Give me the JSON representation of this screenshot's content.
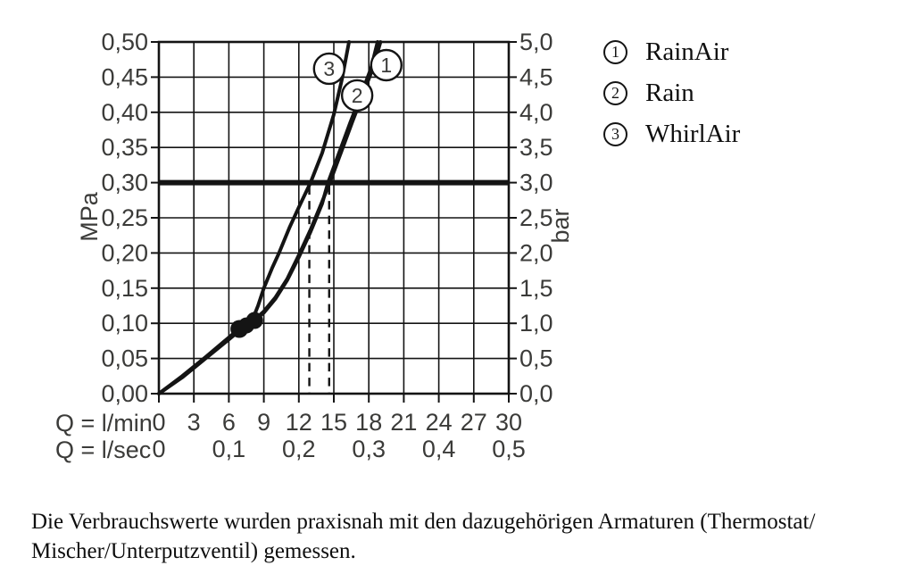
{
  "chart_data": {
    "type": "line",
    "title": "",
    "x_axis": {
      "primary_label": "Q = l/min",
      "secondary_label": "Q = l/sec",
      "primary_ticks": [
        "0",
        "3",
        "6",
        "9",
        "12",
        "15",
        "18",
        "21",
        "24",
        "27",
        "30"
      ],
      "secondary_ticks": [
        {
          "value": "0",
          "at": 0
        },
        {
          "value": "0,1",
          "at": 6
        },
        {
          "value": "0,2",
          "at": 12
        },
        {
          "value": "0,3",
          "at": 18
        },
        {
          "value": "0,4",
          "at": 24
        },
        {
          "value": "0,5",
          "at": 30
        }
      ],
      "range": [
        0,
        30
      ]
    },
    "y_axis_left": {
      "label": "MPa",
      "ticks": [
        "0,00",
        "0,05",
        "0,10",
        "0,15",
        "0,20",
        "0,25",
        "0,30",
        "0,35",
        "0,40",
        "0,45",
        "0,50"
      ],
      "range": [
        0,
        0.5
      ]
    },
    "y_axis_right": {
      "label": "bar",
      "ticks": [
        "0,0",
        "0,5",
        "1,0",
        "1,5",
        "2,0",
        "2,5",
        "3,0",
        "3,5",
        "4,0",
        "4,5",
        "5,0"
      ],
      "range": [
        0,
        5
      ]
    },
    "grid": true,
    "reference_line_mpa": 0.3,
    "dashed_guides_lmin": [
      12.9,
      14.6
    ],
    "operating_dots": [
      {
        "q": 6.9,
        "mpa": 0.092,
        "r": 10
      },
      {
        "q": 7.5,
        "mpa": 0.097,
        "r": 9
      },
      {
        "q": 8.2,
        "mpa": 0.104,
        "r": 9.5
      }
    ],
    "series": [
      {
        "number": "3",
        "name": "WhirlAir",
        "points": [
          [
            0,
            0
          ],
          [
            2,
            0.025
          ],
          [
            4,
            0.052
          ],
          [
            6,
            0.08
          ],
          [
            7,
            0.094
          ],
          [
            8,
            0.104
          ],
          [
            8.5,
            0.125
          ],
          [
            9,
            0.15
          ],
          [
            9.7,
            0.178
          ],
          [
            10.3,
            0.2
          ],
          [
            11.2,
            0.236
          ],
          [
            12,
            0.265
          ],
          [
            13,
            0.3
          ],
          [
            14,
            0.342
          ],
          [
            15,
            0.397
          ],
          [
            15.7,
            0.447
          ],
          [
            16.3,
            0.5
          ]
        ],
        "label_at": {
          "q": 14.6,
          "mpa": 0.462
        }
      },
      {
        "number": "2",
        "name": "Rain",
        "points": [
          [
            0,
            0
          ],
          [
            2,
            0.023
          ],
          [
            4,
            0.05
          ],
          [
            6,
            0.077
          ],
          [
            7,
            0.091
          ],
          [
            8,
            0.101
          ],
          [
            9,
            0.115
          ],
          [
            10,
            0.135
          ],
          [
            11,
            0.161
          ],
          [
            12,
            0.194
          ],
          [
            13,
            0.23
          ],
          [
            14,
            0.27
          ],
          [
            14.5,
            0.3
          ],
          [
            15.4,
            0.34
          ],
          [
            16.4,
            0.385
          ],
          [
            17.4,
            0.428
          ],
          [
            18.2,
            0.463
          ],
          [
            18.75,
            0.5
          ]
        ],
        "label_at": {
          "q": 17.0,
          "mpa": 0.424
        }
      },
      {
        "number": "1",
        "name": "RainAir",
        "points": [
          [
            0,
            0
          ],
          [
            2,
            0.024
          ],
          [
            4,
            0.051
          ],
          [
            6,
            0.078
          ],
          [
            7,
            0.092
          ],
          [
            8,
            0.102
          ],
          [
            9,
            0.117
          ],
          [
            10,
            0.137
          ],
          [
            11,
            0.163
          ],
          [
            12,
            0.197
          ],
          [
            13,
            0.233
          ],
          [
            14,
            0.273
          ],
          [
            14.7,
            0.302
          ],
          [
            15.6,
            0.342
          ],
          [
            16.6,
            0.387
          ],
          [
            17.6,
            0.43
          ],
          [
            18.4,
            0.465
          ],
          [
            19.0,
            0.5
          ]
        ],
        "label_at": {
          "q": 19.5,
          "mpa": 0.467
        }
      }
    ]
  },
  "legend": {
    "items": [
      {
        "number": "1",
        "label": "RainAir"
      },
      {
        "number": "2",
        "label": "Rain"
      },
      {
        "number": "3",
        "label": "WhirlAir"
      }
    ]
  },
  "caption": {
    "line1": "Die Verbrauchswerte wurden praxisnah mit den dazugehörigen Armaturen (Thermostat/",
    "line2": "Mischer/Unterputzventil) gemessen."
  }
}
